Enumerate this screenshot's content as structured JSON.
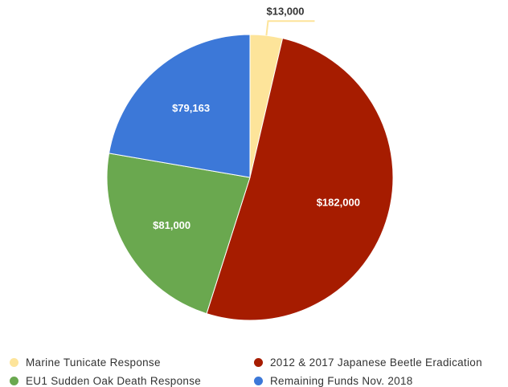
{
  "chart_data": {
    "type": "pie",
    "title": "",
    "slices": [
      {
        "name": "Marine Tunicate Response",
        "value": 13000,
        "label": "$13,000",
        "color": "#FDE49A"
      },
      {
        "name": "2012 & 2017 Japanese Beetle Eradication",
        "value": 182000,
        "label": "$182,000",
        "color": "#A61C00"
      },
      {
        "name": "EU1 Sudden Oak Death Response",
        "value": 81000,
        "label": "$81,000",
        "color": "#6AA84F"
      },
      {
        "name": "Remaining Funds Nov. 2018",
        "value": 79163,
        "label": "$79,163",
        "color": "#3C78D8"
      }
    ],
    "legend_position": "bottom",
    "legend_order": [
      0,
      1,
      2,
      3
    ]
  }
}
